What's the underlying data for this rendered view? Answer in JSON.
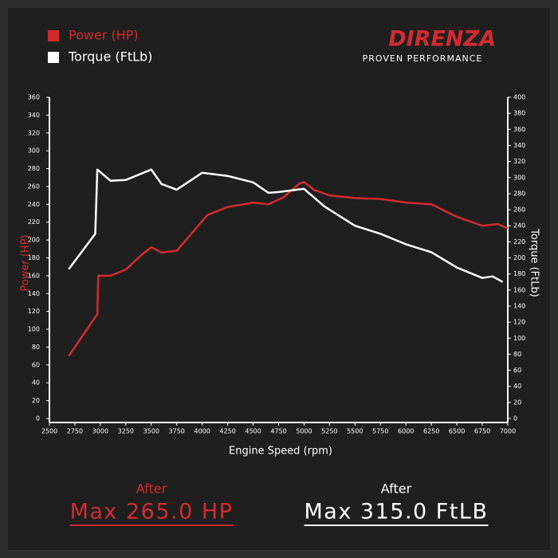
{
  "brand": {
    "name": "DIRENZA",
    "tagline": "PROVEN PERFORMANCE"
  },
  "summary": [
    {
      "caption": "After",
      "text": "Max 265.0 HP",
      "color": "#d42a2f"
    },
    {
      "caption": "After",
      "text": "Max 315.0 FtLB",
      "color": "#ffffff"
    }
  ],
  "chart_data": {
    "type": "line",
    "x_label": "Engine Speed (rpm)",
    "y_label": "Power (HP)",
    "y2_label": "Torque (FtLb)",
    "xlim": [
      2500,
      7000
    ],
    "xticks": [
      2500,
      2750,
      3000,
      3250,
      3500,
      3750,
      4000,
      4250,
      4500,
      4750,
      5000,
      5250,
      5500,
      5750,
      6000,
      6250,
      6500,
      6750,
      7000
    ],
    "ylim": [
      0,
      360
    ],
    "yticks": [
      0,
      20,
      40,
      60,
      80,
      100,
      120,
      140,
      160,
      180,
      200,
      220,
      240,
      260,
      280,
      300,
      320,
      340,
      360
    ],
    "y2lim": [
      0,
      400
    ],
    "y2ticks": [
      0,
      20,
      40,
      60,
      80,
      100,
      120,
      140,
      160,
      180,
      200,
      220,
      240,
      260,
      280,
      300,
      320,
      340,
      360,
      380,
      400
    ],
    "series": [
      {
        "name": "Power (HP)",
        "color": "#d42a2f",
        "x": [
          2690,
          2970,
          2980,
          3100,
          3250,
          3400,
          3500,
          3600,
          3750,
          3900,
          4050,
          4250,
          4500,
          4650,
          4800,
          4950,
          5000,
          5100,
          5250,
          5500,
          5750,
          6000,
          6250,
          6500,
          6750,
          6900,
          7000
        ],
        "values": [
          70,
          117,
          160,
          160,
          167,
          183,
          192,
          186,
          188,
          208,
          228,
          237,
          242,
          240,
          248,
          263,
          265,
          256,
          250,
          247,
          246,
          242,
          240,
          226,
          216,
          218,
          213
        ]
      },
      {
        "name": "Torque (FtLb)",
        "color": "#ffffff",
        "axis": "y2",
        "x": [
          2690,
          2950,
          2970,
          3100,
          3250,
          3500,
          3600,
          3750,
          4000,
          4250,
          4500,
          4650,
          4750,
          5000,
          5200,
          5500,
          5750,
          6000,
          6250,
          6500,
          6750,
          6850,
          6950
        ],
        "values": [
          186,
          230,
          310,
          296,
          297,
          310,
          292,
          285,
          306,
          302,
          294,
          281,
          282,
          286,
          264,
          240,
          230,
          217,
          207,
          188,
          175,
          177,
          170
        ]
      }
    ]
  }
}
